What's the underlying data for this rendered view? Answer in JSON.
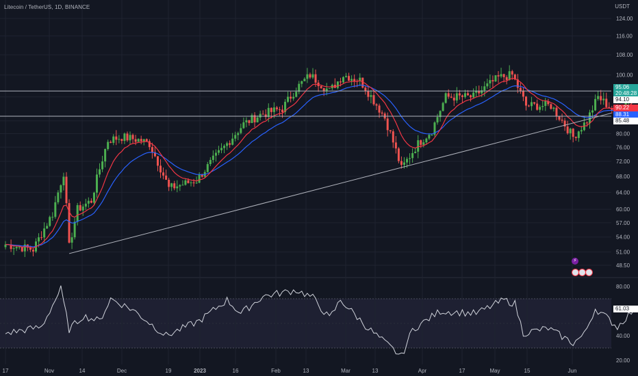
{
  "header": {
    "symbol": "Litecoin / TetherUS, 1D, BINANCE",
    "currency": "USDT"
  },
  "colors": {
    "background": "#131722",
    "grid": "#1f2330",
    "text": "#b2b5be",
    "candle_up": "#26a69a",
    "candle_up_bright": "#4caf50",
    "candle_down": "#ef5350",
    "ma_fast": "#f23645",
    "ma_slow": "#2962ff",
    "rsi_line": "#d1d4dc",
    "rsi_band": "#1e2032",
    "hlines": "#b2b5be"
  },
  "price_tags": [
    {
      "name": "last-price-tag",
      "value": "95.06",
      "timer": "20:48:28",
      "bg": "#26a69a",
      "fg": "#ffffff"
    },
    {
      "name": "level-tag-upper",
      "value": "94.10",
      "bg": "#ffffff",
      "fg": "#131722"
    },
    {
      "name": "ma-fast-tag",
      "value": "90.22",
      "bg": "#f23645",
      "fg": "#ffffff"
    },
    {
      "name": "ma-slow-tag",
      "value": "88.31",
      "bg": "#2962ff",
      "fg": "#ffffff"
    },
    {
      "name": "level-tag-lower",
      "value": "85.48",
      "bg": "#ffffff",
      "fg": "#131722"
    }
  ],
  "rsi_tag": {
    "value": "61.03"
  },
  "chart_data": [
    {
      "type": "candlestick",
      "title": "Litecoin / TetherUS, 1D, BINANCE",
      "scale": "log",
      "y_ticks": [
        "124.00",
        "116.00",
        "108.00",
        "100.00",
        "92.00",
        "84.00",
        "80.00",
        "76.00",
        "72.00",
        "68.00",
        "64.00",
        "60.00",
        "57.00",
        "54.00",
        "51.00",
        "48.50"
      ],
      "x_ticks": [
        "17",
        "Nov",
        "14",
        "Dec",
        "19",
        "2023",
        "16",
        "Feb",
        "13",
        "Mar",
        "13",
        "Apr",
        "17",
        "May",
        "15",
        "Jun"
      ],
      "start_date": "2022-10-17",
      "end_date": "2023-06-01",
      "daily_close_anchors": [
        {
          "date": "2022-10-17",
          "value": 52.5
        },
        {
          "date": "2022-10-27",
          "value": 51.5
        },
        {
          "date": "2022-11-03",
          "value": 59.0
        },
        {
          "date": "2022-11-07",
          "value": 69.0
        },
        {
          "date": "2022-11-09",
          "value": 52.0
        },
        {
          "date": "2022-11-12",
          "value": 60.0
        },
        {
          "date": "2022-11-17",
          "value": 62.0
        },
        {
          "date": "2022-11-23",
          "value": 78.0
        },
        {
          "date": "2022-11-28",
          "value": 79.0
        },
        {
          "date": "2022-12-05",
          "value": 78.0
        },
        {
          "date": "2022-12-08",
          "value": 77.0
        },
        {
          "date": "2022-12-15",
          "value": 65.0
        },
        {
          "date": "2022-12-25",
          "value": 67.0
        },
        {
          "date": "2023-01-04",
          "value": 76.0
        },
        {
          "date": "2023-01-11",
          "value": 83.0
        },
        {
          "date": "2023-01-17",
          "value": 86.0
        },
        {
          "date": "2023-01-25",
          "value": 88.0
        },
        {
          "date": "2023-01-30",
          "value": 95.0
        },
        {
          "date": "2023-02-04",
          "value": 100.0
        },
        {
          "date": "2023-02-11",
          "value": 94.0
        },
        {
          "date": "2023-02-16",
          "value": 100.0
        },
        {
          "date": "2023-02-22",
          "value": 98.0
        },
        {
          "date": "2023-03-03",
          "value": 85.0
        },
        {
          "date": "2023-03-09",
          "value": 70.0
        },
        {
          "date": "2023-03-15",
          "value": 77.0
        },
        {
          "date": "2023-03-20",
          "value": 81.0
        },
        {
          "date": "2023-03-25",
          "value": 92.0
        },
        {
          "date": "2023-04-04",
          "value": 92.0
        },
        {
          "date": "2023-04-13",
          "value": 99.0
        },
        {
          "date": "2023-04-18",
          "value": 100.0
        },
        {
          "date": "2023-04-23",
          "value": 89.0
        },
        {
          "date": "2023-05-02",
          "value": 89.0
        },
        {
          "date": "2023-05-10",
          "value": 79.0
        },
        {
          "date": "2023-05-15",
          "value": 84.0
        },
        {
          "date": "2023-05-19",
          "value": 92.0
        },
        {
          "date": "2023-05-25",
          "value": 87.0
        },
        {
          "date": "2023-05-29",
          "value": 90.0
        },
        {
          "date": "2023-06-01",
          "value": 95.06
        }
      ],
      "horizontal_levels": [
        94.1,
        85.48
      ],
      "trendline": [
        {
          "date": "2022-11-09",
          "value": 50.7
        },
        {
          "date": "2023-06-07",
          "value": 86.5
        }
      ],
      "moving_averages": [
        {
          "name": "fast",
          "color": "#f23645",
          "last": 90.22
        },
        {
          "name": "slow",
          "color": "#2962ff",
          "last": 88.31
        }
      ]
    },
    {
      "type": "line",
      "title": "RSI",
      "y_ticks": [
        "80.00",
        "40.00",
        "20.00"
      ],
      "band": [
        70,
        30
      ],
      "last": 61.03,
      "anchors": [
        {
          "date": "2022-10-17",
          "value": 42
        },
        {
          "date": "2022-10-30",
          "value": 47
        },
        {
          "date": "2022-11-06",
          "value": 78
        },
        {
          "date": "2022-11-09",
          "value": 45
        },
        {
          "date": "2022-11-14",
          "value": 56
        },
        {
          "date": "2022-11-20",
          "value": 52
        },
        {
          "date": "2022-11-24",
          "value": 70
        },
        {
          "date": "2022-12-02",
          "value": 61
        },
        {
          "date": "2022-12-14",
          "value": 40
        },
        {
          "date": "2022-12-26",
          "value": 52
        },
        {
          "date": "2023-01-05",
          "value": 69
        },
        {
          "date": "2023-01-10",
          "value": 58
        },
        {
          "date": "2023-01-18",
          "value": 72
        },
        {
          "date": "2023-01-30",
          "value": 77
        },
        {
          "date": "2023-02-05",
          "value": 71
        },
        {
          "date": "2023-02-11",
          "value": 54
        },
        {
          "date": "2023-02-15",
          "value": 69
        },
        {
          "date": "2023-02-25",
          "value": 46
        },
        {
          "date": "2023-03-09",
          "value": 23
        },
        {
          "date": "2023-03-13",
          "value": 45
        },
        {
          "date": "2023-03-23",
          "value": 60
        },
        {
          "date": "2023-04-05",
          "value": 58
        },
        {
          "date": "2023-04-15",
          "value": 69
        },
        {
          "date": "2023-04-19",
          "value": 66
        },
        {
          "date": "2023-04-22",
          "value": 42
        },
        {
          "date": "2023-05-01",
          "value": 46
        },
        {
          "date": "2023-05-10",
          "value": 34
        },
        {
          "date": "2023-05-14",
          "value": 41
        },
        {
          "date": "2023-05-18",
          "value": 62
        },
        {
          "date": "2023-05-22",
          "value": 55
        },
        {
          "date": "2023-05-26",
          "value": 47
        },
        {
          "date": "2023-05-30",
          "value": 57
        },
        {
          "date": "2023-06-01",
          "value": 61.03
        }
      ]
    }
  ]
}
